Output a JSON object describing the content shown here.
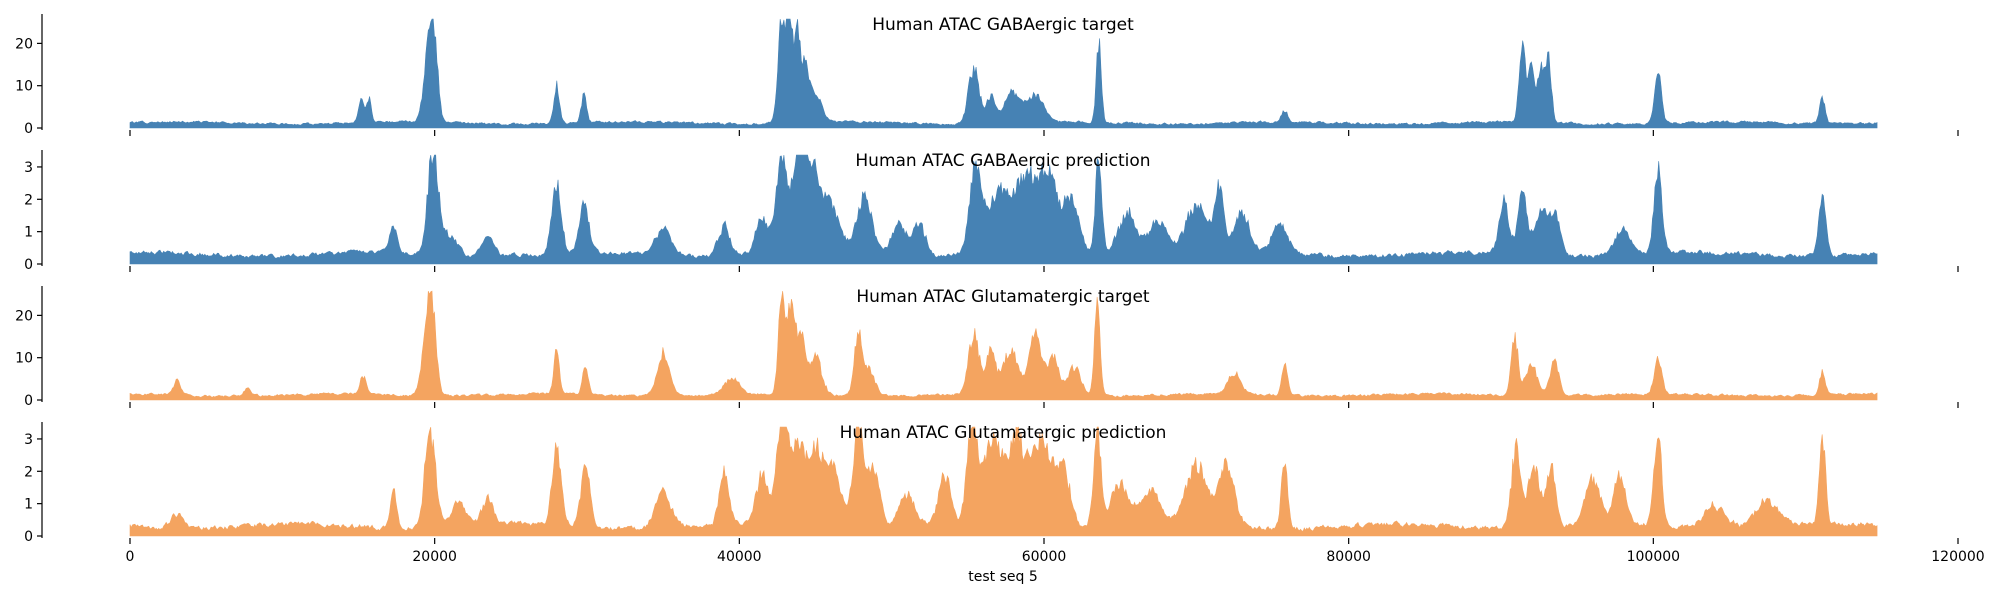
{
  "chart_data": {
    "type": "area",
    "xlabel": "test seq 5",
    "xlim": [
      0,
      120000
    ],
    "x_end": 114688,
    "x_ticks": [
      0,
      20000,
      40000,
      60000,
      80000,
      100000,
      120000
    ],
    "x_tick_labels": [
      "0",
      "20000",
      "40000",
      "60000",
      "80000",
      "100000",
      "120000"
    ],
    "panels": [
      {
        "title": "Human ATAC GABAergic target",
        "color": "#4682b4",
        "ylim": [
          0,
          26
        ],
        "y_ticks": [
          0,
          10,
          20
        ],
        "baseline": 1.2,
        "noise": 0.5,
        "peaks": [
          [
            15200,
            5.5,
            180
          ],
          [
            15700,
            6,
            150
          ],
          [
            19900,
            21,
            280
          ],
          [
            19500,
            10,
            300
          ],
          [
            28000,
            9,
            180
          ],
          [
            29800,
            6.5,
            180
          ],
          [
            42800,
            25,
            250
          ],
          [
            43300,
            21,
            200
          ],
          [
            43800,
            20,
            200
          ],
          [
            44300,
            12,
            250
          ],
          [
            45000,
            7,
            400
          ],
          [
            55400,
            13,
            350
          ],
          [
            56500,
            6,
            300
          ],
          [
            58000,
            7,
            600
          ],
          [
            59500,
            6,
            500
          ],
          [
            63600,
            19,
            160
          ],
          [
            75800,
            3,
            200
          ],
          [
            91400,
            19,
            200
          ],
          [
            92000,
            13,
            200
          ],
          [
            92600,
            12,
            200
          ],
          [
            93100,
            16,
            200
          ],
          [
            100300,
            12,
            220
          ],
          [
            111100,
            6,
            180
          ]
        ]
      },
      {
        "title": "Human ATAC GABAergic prediction",
        "color": "#4682b4",
        "ylim": [
          0,
          3.4
        ],
        "y_ticks": [
          0,
          1,
          2,
          3
        ],
        "baseline": 0.3,
        "noise": 0.12,
        "peaks": [
          [
            17300,
            0.8,
            250
          ],
          [
            19900,
            3.2,
            350
          ],
          [
            21000,
            0.6,
            500
          ],
          [
            23500,
            0.6,
            400
          ],
          [
            28000,
            2.2,
            300
          ],
          [
            29800,
            1.6,
            300
          ],
          [
            35000,
            0.8,
            500
          ],
          [
            39000,
            0.9,
            400
          ],
          [
            41500,
            1.2,
            400
          ],
          [
            42800,
            3.1,
            350
          ],
          [
            43900,
            2.8,
            400
          ],
          [
            44800,
            2.3,
            500
          ],
          [
            46000,
            1.4,
            600
          ],
          [
            48200,
            1.8,
            500
          ],
          [
            50500,
            0.9,
            500
          ],
          [
            51800,
            1.0,
            400
          ],
          [
            55500,
            2.5,
            400
          ],
          [
            57000,
            1.9,
            700
          ],
          [
            58800,
            2.2,
            700
          ],
          [
            60300,
            2.3,
            600
          ],
          [
            61800,
            1.6,
            500
          ],
          [
            63600,
            3.2,
            200
          ],
          [
            65500,
            1.3,
            600
          ],
          [
            67500,
            1.1,
            600
          ],
          [
            70000,
            1.5,
            700
          ],
          [
            71500,
            2.0,
            300
          ],
          [
            73000,
            1.2,
            500
          ],
          [
            75500,
            0.9,
            500
          ],
          [
            90200,
            1.7,
            300
          ],
          [
            91400,
            1.8,
            300
          ],
          [
            92600,
            1.3,
            400
          ],
          [
            93500,
            1.2,
            400
          ],
          [
            98000,
            0.8,
            500
          ],
          [
            100300,
            2.6,
            260
          ],
          [
            111100,
            2.0,
            230
          ]
        ]
      },
      {
        "title": "Human ATAC Glutamatergic target",
        "color": "#f4a460",
        "ylim": [
          0,
          26
        ],
        "y_ticks": [
          0,
          10,
          20
        ],
        "baseline": 1.2,
        "noise": 0.5,
        "peaks": [
          [
            3100,
            3.5,
            250
          ],
          [
            7700,
            2,
            200
          ],
          [
            15300,
            4.5,
            200
          ],
          [
            19800,
            21,
            280
          ],
          [
            19400,
            10,
            300
          ],
          [
            28000,
            10,
            180
          ],
          [
            29900,
            7.5,
            180
          ],
          [
            35000,
            10,
            400
          ],
          [
            39500,
            4,
            500
          ],
          [
            42800,
            24,
            220
          ],
          [
            43400,
            21,
            200
          ],
          [
            44000,
            15,
            300
          ],
          [
            45000,
            9,
            400
          ],
          [
            47800,
            14,
            250
          ],
          [
            48500,
            6,
            400
          ],
          [
            55400,
            14,
            350
          ],
          [
            56500,
            10,
            300
          ],
          [
            57800,
            10,
            500
          ],
          [
            59400,
            14,
            400
          ],
          [
            60600,
            9,
            400
          ],
          [
            62000,
            7,
            400
          ],
          [
            63500,
            24,
            180
          ],
          [
            72500,
            5,
            400
          ],
          [
            75800,
            7,
            200
          ],
          [
            90900,
            14,
            220
          ],
          [
            92000,
            7,
            400
          ],
          [
            93500,
            8,
            300
          ],
          [
            100300,
            8,
            250
          ],
          [
            111100,
            5.5,
            180
          ]
        ]
      },
      {
        "title": "Human ATAC Glutamatergic prediction",
        "color": "#f4a460",
        "ylim": [
          0,
          3.4
        ],
        "y_ticks": [
          0,
          1,
          2,
          3
        ],
        "baseline": 0.3,
        "noise": 0.14,
        "peaks": [
          [
            3100,
            0.4,
            400
          ],
          [
            17300,
            1.2,
            200
          ],
          [
            19700,
            3.0,
            350
          ],
          [
            21500,
            0.8,
            500
          ],
          [
            23500,
            0.8,
            400
          ],
          [
            28000,
            2.5,
            300
          ],
          [
            29900,
            2.0,
            300
          ],
          [
            35000,
            1.1,
            500
          ],
          [
            39000,
            1.7,
            300
          ],
          [
            41500,
            1.5,
            400
          ],
          [
            42800,
            3.0,
            350
          ],
          [
            43800,
            2.4,
            500
          ],
          [
            45000,
            2.3,
            500
          ],
          [
            46200,
            1.8,
            500
          ],
          [
            47800,
            3.0,
            350
          ],
          [
            48800,
            1.8,
            400
          ],
          [
            51000,
            1.0,
            500
          ],
          [
            53500,
            1.5,
            400
          ],
          [
            55300,
            3.0,
            350
          ],
          [
            56600,
            2.5,
            600
          ],
          [
            58200,
            2.6,
            600
          ],
          [
            59800,
            2.6,
            600
          ],
          [
            61200,
            1.9,
            500
          ],
          [
            63500,
            2.8,
            250
          ],
          [
            65000,
            1.3,
            600
          ],
          [
            67000,
            1.1,
            600
          ],
          [
            70000,
            1.8,
            700
          ],
          [
            72000,
            2.0,
            500
          ],
          [
            75800,
            2.1,
            200
          ],
          [
            91000,
            2.5,
            300
          ],
          [
            92200,
            1.9,
            400
          ],
          [
            93300,
            1.8,
            300
          ],
          [
            96000,
            1.4,
            500
          ],
          [
            97800,
            1.5,
            400
          ],
          [
            100300,
            2.6,
            260
          ],
          [
            104000,
            0.7,
            700
          ],
          [
            107500,
            0.8,
            800
          ],
          [
            111100,
            2.7,
            200
          ]
        ]
      }
    ]
  }
}
